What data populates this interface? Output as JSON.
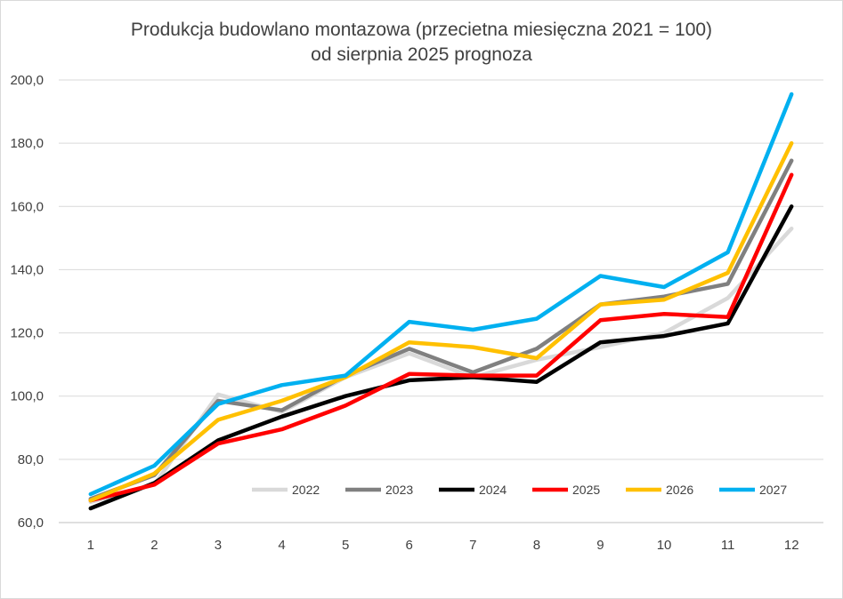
{
  "chart_data": {
    "type": "line",
    "title": "Produkcja budowlano montazowa (przecietna miesięczna 2021 = 100)",
    "subtitle": "od sierpnia 2025 prognoza",
    "xlabel": "",
    "ylabel": "",
    "x": [
      1,
      2,
      3,
      4,
      5,
      6,
      7,
      8,
      9,
      10,
      11,
      12
    ],
    "x_tick_labels": [
      "1",
      "2",
      "3",
      "4",
      "5",
      "6",
      "7",
      "8",
      "9",
      "10",
      "11",
      "12"
    ],
    "ylim": [
      60,
      200
    ],
    "y_tick_labels": [
      "60,0",
      "80,0",
      "100,0",
      "120,0",
      "140,0",
      "160,0",
      "180,0",
      "200,0"
    ],
    "grid": "horizontal",
    "legend_position": "bottom-right inside",
    "series": [
      {
        "name": "2022",
        "color": "#d9d9d9",
        "values": [
          66.5,
          72.0,
          100.5,
          95.0,
          106.0,
          113.5,
          106.0,
          111.5,
          115.5,
          120.0,
          131.0,
          153.0
        ]
      },
      {
        "name": "2023",
        "color": "#808080",
        "values": [
          67.5,
          75.0,
          98.5,
          95.5,
          106.5,
          115.0,
          107.5,
          115.0,
          129.0,
          131.5,
          135.5,
          174.5
        ]
      },
      {
        "name": "2024",
        "color": "#000000",
        "values": [
          64.5,
          72.5,
          86.0,
          93.5,
          100.0,
          105.0,
          106.0,
          104.5,
          117.0,
          119.0,
          123.0,
          160.0
        ]
      },
      {
        "name": "2025",
        "color": "#ff0000",
        "values": [
          67.0,
          72.0,
          85.0,
          89.5,
          97.0,
          107.0,
          106.5,
          106.5,
          124.0,
          126.0,
          125.0,
          170.0
        ]
      },
      {
        "name": "2026",
        "color": "#ffc000",
        "values": [
          67.0,
          75.5,
          92.5,
          98.5,
          106.0,
          117.0,
          115.5,
          112.0,
          129.0,
          130.5,
          139.0,
          180.0
        ]
      },
      {
        "name": "2027",
        "color": "#00b0f0",
        "values": [
          69.0,
          78.0,
          97.5,
          103.5,
          106.5,
          123.5,
          121.0,
          124.5,
          138.0,
          134.5,
          145.5,
          195.5
        ]
      }
    ]
  }
}
